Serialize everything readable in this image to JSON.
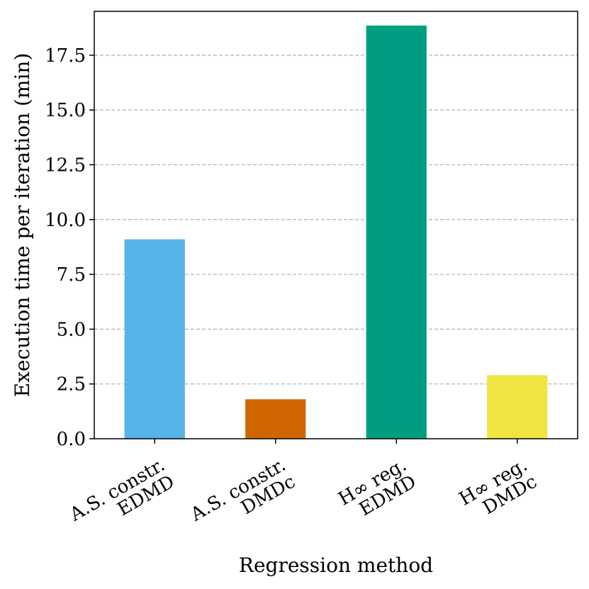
{
  "chart_data": {
    "type": "bar",
    "title": "",
    "xlabel": "Regression method",
    "ylabel": "Execution time per iteration (min)",
    "categories": [
      [
        "A.S. constr.",
        "EDMD"
      ],
      [
        "A.S. constr.",
        "DMDc"
      ],
      [
        "H∞ reg.",
        "EDMD"
      ],
      [
        "H∞ reg.",
        "DMDc"
      ]
    ],
    "values": [
      9.1,
      1.8,
      18.85,
      2.9
    ],
    "colors": [
      "#56B4E9",
      "#D06600",
      "#009E80",
      "#F0E442"
    ],
    "ylim": [
      0,
      19.5
    ],
    "yticks": [
      0.0,
      2.5,
      5.0,
      7.5,
      10.0,
      12.5,
      15.0,
      17.5
    ],
    "ytick_labels": [
      "0.0",
      "2.5",
      "5.0",
      "7.5",
      "10.0",
      "12.5",
      "15.0",
      "17.5"
    ],
    "grid": "y-dashed",
    "legend": "none"
  }
}
